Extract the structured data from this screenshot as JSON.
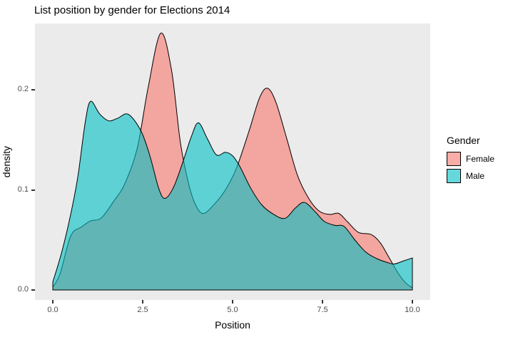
{
  "chart_data": {
    "type": "area",
    "title": "List position by gender for Elections 2014",
    "xlabel": "Position",
    "ylabel": "density",
    "grid": "off",
    "panel_bg": "#EBEBEB",
    "xlim": [
      -0.5,
      10.5
    ],
    "ylim": [
      0,
      0.266
    ],
    "x_ticks": {
      "values": [
        0,
        2.5,
        5,
        7.5,
        10
      ],
      "labels": [
        "0.0",
        "2.5",
        "5.0",
        "7.5",
        "10.0"
      ]
    },
    "y_ticks": {
      "values": [
        0,
        0.1,
        0.2
      ],
      "labels": [
        "0.0",
        "0.1",
        "0.2"
      ]
    },
    "legend": {
      "title": "Gender",
      "position": "right",
      "entries": [
        {
          "label": "Female",
          "fill": "#F8766D",
          "swatch_color": "#FAACA7"
        },
        {
          "label": "Male",
          "fill": "#00BFC4",
          "swatch_color": "#66D8DB"
        }
      ]
    },
    "series": [
      {
        "name": "Female",
        "fill": "#F8766D",
        "fill_opacity": 0.6,
        "stroke": "#000000",
        "close_right_to_zero": false,
        "points": [
          [
            0,
            0.003
          ],
          [
            0.2,
            0.016
          ],
          [
            0.5,
            0.054
          ],
          [
            0.8,
            0.063
          ],
          [
            1.05,
            0.069
          ],
          [
            1.35,
            0.072
          ],
          [
            1.7,
            0.089
          ],
          [
            2.0,
            0.106
          ],
          [
            2.35,
            0.142
          ],
          [
            2.65,
            0.202
          ],
          [
            3.0,
            0.2565
          ],
          [
            3.3,
            0.22
          ],
          [
            3.55,
            0.147
          ],
          [
            3.8,
            0.103
          ],
          [
            4.0,
            0.083
          ],
          [
            4.2,
            0.0765
          ],
          [
            4.5,
            0.086
          ],
          [
            4.8,
            0.1
          ],
          [
            5.1,
            0.121
          ],
          [
            5.45,
            0.158
          ],
          [
            5.75,
            0.192
          ],
          [
            5.97,
            0.2015
          ],
          [
            6.2,
            0.188
          ],
          [
            6.5,
            0.152
          ],
          [
            6.8,
            0.115
          ],
          [
            7.1,
            0.0925
          ],
          [
            7.4,
            0.079
          ],
          [
            7.7,
            0.0755
          ],
          [
            7.95,
            0.0765
          ],
          [
            8.2,
            0.068
          ],
          [
            8.5,
            0.0575
          ],
          [
            8.85,
            0.0555
          ],
          [
            9.1,
            0.0475
          ],
          [
            9.35,
            0.0325
          ],
          [
            9.6,
            0.017
          ],
          [
            9.8,
            0.0075
          ],
          [
            10,
            0.002
          ]
        ]
      },
      {
        "name": "Male",
        "fill": "#00BFC4",
        "fill_opacity": 0.6,
        "stroke": "#000000",
        "close_right_to_zero": true,
        "points": [
          [
            0,
            0.008
          ],
          [
            0.25,
            0.038
          ],
          [
            0.5,
            0.076
          ],
          [
            0.7,
            0.114
          ],
          [
            0.9,
            0.167
          ],
          [
            1.05,
            0.1885
          ],
          [
            1.3,
            0.176
          ],
          [
            1.55,
            0.169
          ],
          [
            1.8,
            0.1715
          ],
          [
            2.1,
            0.1755
          ],
          [
            2.45,
            0.159
          ],
          [
            2.7,
            0.134
          ],
          [
            2.95,
            0.101
          ],
          [
            3.12,
            0.0915
          ],
          [
            3.35,
            0.102
          ],
          [
            3.6,
            0.126
          ],
          [
            3.85,
            0.153
          ],
          [
            4.05,
            0.167
          ],
          [
            4.3,
            0.151
          ],
          [
            4.55,
            0.135
          ],
          [
            4.8,
            0.1375
          ],
          [
            5.0,
            0.134
          ],
          [
            5.2,
            0.1235
          ],
          [
            5.5,
            0.102
          ],
          [
            5.8,
            0.0855
          ],
          [
            6.1,
            0.0765
          ],
          [
            6.45,
            0.0715
          ],
          [
            6.75,
            0.082
          ],
          [
            7.0,
            0.0875
          ],
          [
            7.3,
            0.078
          ],
          [
            7.55,
            0.0685
          ],
          [
            7.85,
            0.0645
          ],
          [
            8.1,
            0.0635
          ],
          [
            8.4,
            0.05
          ],
          [
            8.7,
            0.038
          ],
          [
            9.0,
            0.0315
          ],
          [
            9.3,
            0.0275
          ],
          [
            9.5,
            0.026
          ],
          [
            9.75,
            0.029
          ],
          [
            10,
            0.032
          ]
        ]
      }
    ]
  }
}
